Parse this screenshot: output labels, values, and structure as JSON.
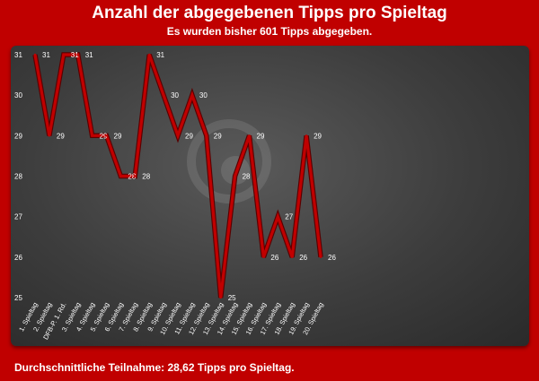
{
  "header": {
    "title": "Anzahl der abgegebenen Tipps pro Spieltag",
    "subtitle": "Es wurden bisher 601 Tipps abgegeben."
  },
  "footer": {
    "text": "Durchschnittliche Teilnahme: 28,62 Tipps pro Spieltag."
  },
  "chart_data": {
    "type": "line",
    "title": "Anzahl der abgegebenen Tipps pro Spieltag",
    "categories": [
      "1. Spieltag",
      "2. Spieltag",
      "DFB-P. 1. Rd.",
      "3. Spieltag",
      "4. Spieltag",
      "5. Spieltag",
      "6. Spieltag",
      "7. Spieltag",
      "8. Spieltag",
      "9. Spieltag",
      "10. Spieltag",
      "11. Spieltag",
      "12. Spieltag",
      "13. Spieltag",
      "14. Spieltag",
      "15. Spieltag",
      "16. Spieltag",
      "17. Spieltag",
      "18. Spieltag",
      "19. Spieltag",
      "20. Spieltag"
    ],
    "series": [
      {
        "values": [
          31,
          29,
          31,
          31,
          29,
          29,
          28,
          28,
          31,
          30,
          29,
          30,
          29,
          25,
          28,
          29,
          26,
          27,
          26,
          29,
          26
        ]
      }
    ],
    "data_labels": [
      "31",
      "29",
      "31",
      "31",
      "29",
      "29",
      "28",
      "28",
      "31",
      "30",
      "29",
      "30",
      "29",
      "25",
      "28",
      "29",
      "26",
      "27",
      "26",
      "29",
      "26"
    ],
    "ylim": [
      25,
      31
    ],
    "yticks": [
      25,
      26,
      27,
      28,
      29,
      30,
      31
    ],
    "grid": false,
    "legend": "none",
    "colors": {
      "line": "#c00000",
      "text": "#ffffff",
      "background": "#c00000",
      "panel": "#404040"
    }
  }
}
